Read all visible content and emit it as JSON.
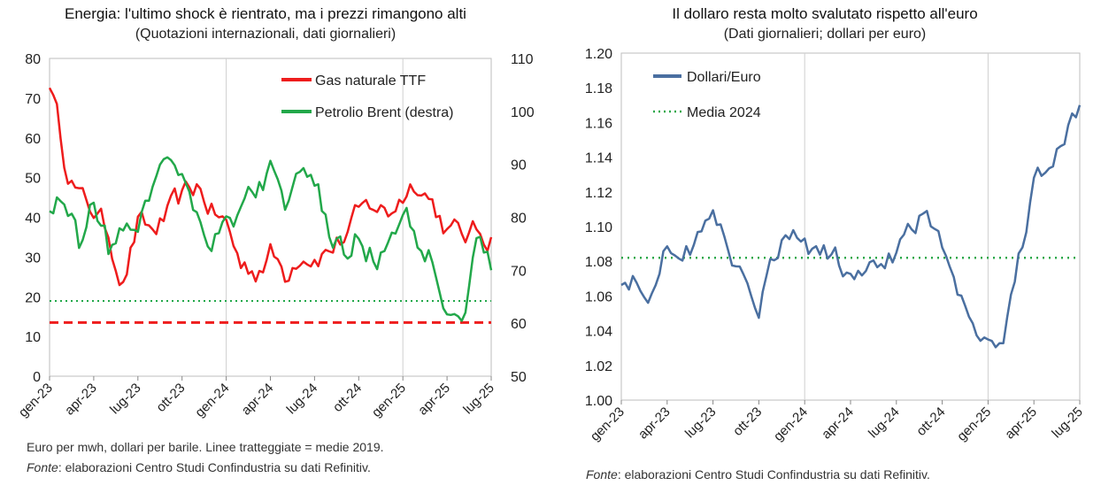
{
  "left": {
    "title": "Energia: l'ultimo shock è rientrato, ma i prezzi rimangono alti",
    "subtitle": "(Quotazioni internazionali, dati giornalieri)",
    "note_line1": "Euro per mwh, dollari per barile. Linee tratteggiate = medie 2019.",
    "source_label": "Fonte",
    "source_text": ": elaborazioni Centro Studi Confindustria su dati Refinitiv."
  },
  "right": {
    "title": "Il dollaro resta molto svalutato rispetto all'euro",
    "subtitle": "(Dati giornalieri; dollari per euro)",
    "source_label": "Fonte",
    "source_text": ": elaborazioni Centro Studi Confindustria su dati Refinitiv."
  },
  "chart_data": [
    {
      "type": "line",
      "x_ticks": [
        "gen-23",
        "apr-23",
        "lug-23",
        "ott-23",
        "gen-24",
        "apr-24",
        "lug-24",
        "ott-24",
        "gen-25",
        "apr-25",
        "lug-25"
      ],
      "x_range": [
        "gen-23",
        "lug-25"
      ],
      "ylim": [
        0,
        80
      ],
      "y_ticks": [
        0,
        10,
        20,
        30,
        40,
        50,
        60,
        70,
        80
      ],
      "y2lim": [
        50,
        110
      ],
      "y2_ticks": [
        50,
        60,
        70,
        80,
        90,
        100,
        110
      ],
      "grid": "vertical lines at gen-24 and gen-25",
      "legend_position": "top-right",
      "colors": {
        "gas": "#ee1c1c",
        "brent": "#22a84a"
      },
      "series": [
        {
          "name": "Gas naturale TTF",
          "axis": "left",
          "x": [
            "gen-23",
            "feb-23",
            "mar-23",
            "apr-23",
            "mag-23",
            "giu-23",
            "lug-23",
            "ago-23",
            "set-23",
            "ott-23",
            "nov-23",
            "dic-23",
            "gen-24",
            "feb-24",
            "mar-24",
            "apr-24",
            "mag-24",
            "giu-24",
            "lug-24",
            "ago-24",
            "set-24",
            "ott-24",
            "nov-24",
            "dic-24",
            "gen-25",
            "feb-25",
            "mar-25",
            "apr-25",
            "mag-25",
            "giu-25",
            "lug-25"
          ],
          "values": [
            75,
            56,
            45,
            42,
            36,
            24,
            38,
            36,
            40,
            44,
            48,
            42,
            38,
            28,
            27,
            31,
            26,
            32,
            31,
            32,
            35,
            40,
            43,
            41,
            46,
            50,
            44,
            37,
            35,
            36,
            35
          ]
        },
        {
          "name": "Petrolio Brent (destra)",
          "axis": "right",
          "x": [
            "gen-23",
            "feb-23",
            "mar-23",
            "apr-23",
            "mag-23",
            "giu-23",
            "lug-23",
            "ago-23",
            "set-23",
            "ott-23",
            "nov-23",
            "dic-23",
            "gen-24",
            "feb-24",
            "mar-24",
            "apr-24",
            "mag-24",
            "giu-24",
            "lug-24",
            "ago-24",
            "set-24",
            "ott-24",
            "nov-24",
            "dic-24",
            "gen-25",
            "feb-25",
            "mar-25",
            "apr-25",
            "mag-25",
            "giu-25",
            "lug-25"
          ],
          "values": [
            81,
            85,
            75,
            85,
            75,
            76,
            80,
            86,
            93,
            90,
            81,
            77,
            80,
            81,
            85,
            89,
            83,
            86,
            85,
            78,
            72,
            77,
            73,
            74,
            80,
            76,
            73,
            65,
            63,
            74,
            70
          ]
        },
        {
          "name": "",
          "axis": "left",
          "style": "dashed",
          "color": "#ee1c1c",
          "x": [
            "gen-23",
            "lug-25"
          ],
          "values": [
            13.5,
            13.5
          ]
        },
        {
          "name": "",
          "axis": "right",
          "style": "dotted",
          "color": "#22a84a",
          "x": [
            "gen-23",
            "lug-25"
          ],
          "values": [
            64.2,
            64.2
          ]
        }
      ]
    },
    {
      "type": "line",
      "x_ticks": [
        "gen-23",
        "apr-23",
        "lug-23",
        "ott-23",
        "gen-24",
        "apr-24",
        "lug-24",
        "ott-24",
        "gen-25",
        "apr-25",
        "lug-25"
      ],
      "x_range": [
        "gen-23",
        "lug-25"
      ],
      "ylim": [
        1.0,
        1.2
      ],
      "y_ticks": [
        "1.00",
        "1.02",
        "1.04",
        "1.06",
        "1.08",
        "1.10",
        "1.12",
        "1.14",
        "1.16",
        "1.18",
        "1.20"
      ],
      "grid": "vertical lines at gen-24 and gen-25",
      "legend_position": "top-left",
      "colors": {
        "usd": "#4a6fa0",
        "avg": "#2aa84a"
      },
      "series": [
        {
          "name": "Dollari/Euro",
          "x": [
            "gen-23",
            "feb-23",
            "mar-23",
            "apr-23",
            "mag-23",
            "giu-23",
            "lug-23",
            "ago-23",
            "set-23",
            "ott-23",
            "nov-23",
            "dic-23",
            "gen-24",
            "feb-24",
            "mar-24",
            "apr-24",
            "mag-24",
            "giu-24",
            "lug-24",
            "ago-24",
            "set-24",
            "ott-24",
            "nov-24",
            "dic-24",
            "gen-25",
            "feb-25",
            "mar-25",
            "apr-25",
            "mag-25",
            "giu-25",
            "lug-25"
          ],
          "values": [
            1.07,
            1.07,
            1.065,
            1.095,
            1.08,
            1.09,
            1.115,
            1.09,
            1.07,
            1.055,
            1.08,
            1.095,
            1.09,
            1.08,
            1.085,
            1.07,
            1.08,
            1.075,
            1.085,
            1.095,
            1.11,
            1.09,
            1.055,
            1.045,
            1.035,
            1.04,
            1.08,
            1.125,
            1.13,
            1.15,
            1.17
          ]
        },
        {
          "name": "Media 2024",
          "style": "dotted",
          "x": [
            "gen-23",
            "lug-25"
          ],
          "values": [
            1.082,
            1.082
          ]
        }
      ]
    }
  ]
}
